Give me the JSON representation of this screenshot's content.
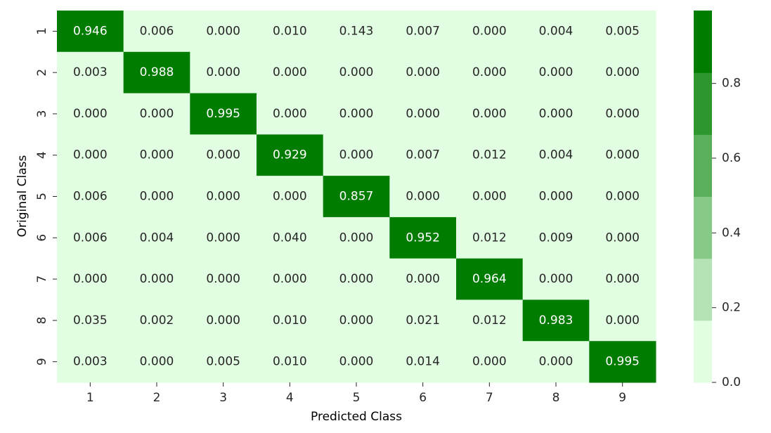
{
  "chart_data": {
    "type": "heatmap",
    "title": "",
    "xlabel": "Predicted Class",
    "ylabel": "Original Class",
    "x_categories": [
      "1",
      "2",
      "3",
      "4",
      "5",
      "6",
      "7",
      "8",
      "9"
    ],
    "y_categories": [
      "1",
      "2",
      "3",
      "4",
      "5",
      "6",
      "7",
      "8",
      "9"
    ],
    "values": [
      [
        0.946,
        0.006,
        0.0,
        0.01,
        0.143,
        0.007,
        0.0,
        0.004,
        0.005
      ],
      [
        0.003,
        0.988,
        0.0,
        0.0,
        0.0,
        0.0,
        0.0,
        0.0,
        0.0
      ],
      [
        0.0,
        0.0,
        0.995,
        0.0,
        0.0,
        0.0,
        0.0,
        0.0,
        0.0
      ],
      [
        0.0,
        0.0,
        0.0,
        0.929,
        0.0,
        0.007,
        0.012,
        0.004,
        0.0
      ],
      [
        0.006,
        0.0,
        0.0,
        0.0,
        0.857,
        0.0,
        0.0,
        0.0,
        0.0
      ],
      [
        0.006,
        0.004,
        0.0,
        0.04,
        0.0,
        0.952,
        0.012,
        0.009,
        0.0
      ],
      [
        0.0,
        0.0,
        0.0,
        0.0,
        0.0,
        0.0,
        0.964,
        0.0,
        0.0
      ],
      [
        0.035,
        0.002,
        0.0,
        0.01,
        0.0,
        0.021,
        0.012,
        0.983,
        0.0
      ],
      [
        0.003,
        0.0,
        0.005,
        0.01,
        0.0,
        0.014,
        0.0,
        0.0,
        0.995
      ]
    ],
    "value_format": "3 decimals",
    "colorbar": {
      "ticks": [
        "0.0",
        "0.2",
        "0.4",
        "0.6",
        "0.8"
      ],
      "tick_values": [
        0.0,
        0.2,
        0.4,
        0.6,
        0.8
      ],
      "range": [
        0.0,
        0.995
      ],
      "bins": 6,
      "colors": [
        "#e2fee2",
        "#b5e3b5",
        "#87c987",
        "#5aaf5a",
        "#2d962d",
        "#007c00"
      ]
    },
    "text_colors": {
      "light_cell": "#262626",
      "dark_cell": "#ffffff"
    },
    "grid": false
  }
}
